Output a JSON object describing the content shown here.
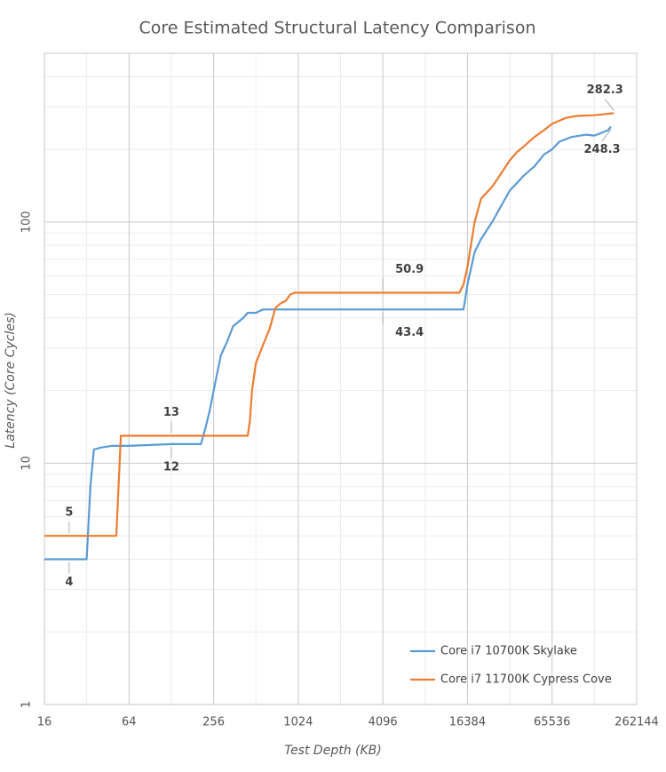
{
  "chart_data": {
    "type": "line",
    "title": "Core Estimated Structural Latency Comparison",
    "x_label": "Test Depth (KB)",
    "y_label": "Latency (Core Cycles)",
    "x_log_base": 2,
    "y_log_base": 10,
    "xlim": [
      16,
      262144
    ],
    "ylim": [
      1,
      500
    ],
    "xticks": [
      16,
      64,
      256,
      1024,
      4096,
      16384,
      65536,
      262144
    ],
    "yticks": [
      1,
      10,
      100
    ],
    "grid": true,
    "minor_grid": true,
    "legend": "lower right",
    "series": [
      {
        "name": "Core i7 10700K Skylake",
        "color": "#5b9bd5",
        "x": [
          16,
          24,
          32,
          34,
          36,
          40,
          48,
          64,
          128,
          192,
          208,
          224,
          240,
          256,
          288,
          320,
          352,
          416,
          448,
          512,
          576,
          1024,
          4096,
          14336,
          15360,
          16384,
          18432,
          20480,
          24576,
          32768,
          36864,
          40960,
          49152,
          57344,
          65536,
          73728,
          90112,
          114688,
          131072,
          163840,
          172032
        ],
        "values": [
          4,
          4,
          4,
          8,
          11.4,
          11.6,
          11.8,
          11.8,
          12,
          12,
          12,
          14,
          16.5,
          20,
          28,
          32,
          37,
          40,
          42,
          42,
          43.4,
          43.4,
          43.4,
          43.4,
          43.4,
          55,
          75,
          85,
          100,
          135,
          145,
          155,
          170,
          190,
          200,
          215,
          225,
          230,
          228,
          240,
          248.3
        ],
        "value_labels": [
          null,
          "4",
          null,
          null,
          null,
          null,
          null,
          null,
          "12",
          null,
          null,
          null,
          null,
          null,
          null,
          null,
          null,
          null,
          null,
          null,
          null,
          null,
          "43.4",
          null,
          null,
          null,
          null,
          null,
          null,
          null,
          null,
          null,
          null,
          null,
          null,
          null,
          null,
          null,
          null,
          null,
          "248.3"
        ]
      },
      {
        "name": "Core i7 11700K Cypress Cove",
        "color": "#ed7d31",
        "x": [
          16,
          24,
          48,
          52,
          56,
          64,
          128,
          256,
          384,
          448,
          464,
          480,
          512,
          576,
          640,
          704,
          768,
          832,
          896,
          960,
          1024,
          4096,
          14336,
          15360,
          16384,
          18432,
          20480,
          24576,
          28672,
          32768,
          36864,
          40960,
          49152,
          57344,
          65536,
          81920,
          98304,
          131072,
          180224
        ],
        "values": [
          5,
          5,
          5,
          5,
          13,
          13,
          13,
          13,
          13,
          13,
          15,
          20,
          26,
          31,
          36,
          44,
          46,
          47,
          50,
          50.9,
          50.9,
          50.9,
          50.9,
          55,
          65,
          100,
          125,
          140,
          160,
          180,
          195,
          205,
          225,
          240,
          255,
          270,
          275,
          277,
          282.3
        ],
        "value_labels": [
          null,
          "5",
          null,
          null,
          null,
          null,
          "13",
          null,
          null,
          null,
          null,
          null,
          null,
          null,
          null,
          null,
          null,
          null,
          null,
          null,
          null,
          "50.9",
          null,
          null,
          null,
          null,
          null,
          null,
          null,
          null,
          null,
          null,
          null,
          null,
          null,
          null,
          null,
          null,
          "282.3"
        ]
      }
    ]
  }
}
